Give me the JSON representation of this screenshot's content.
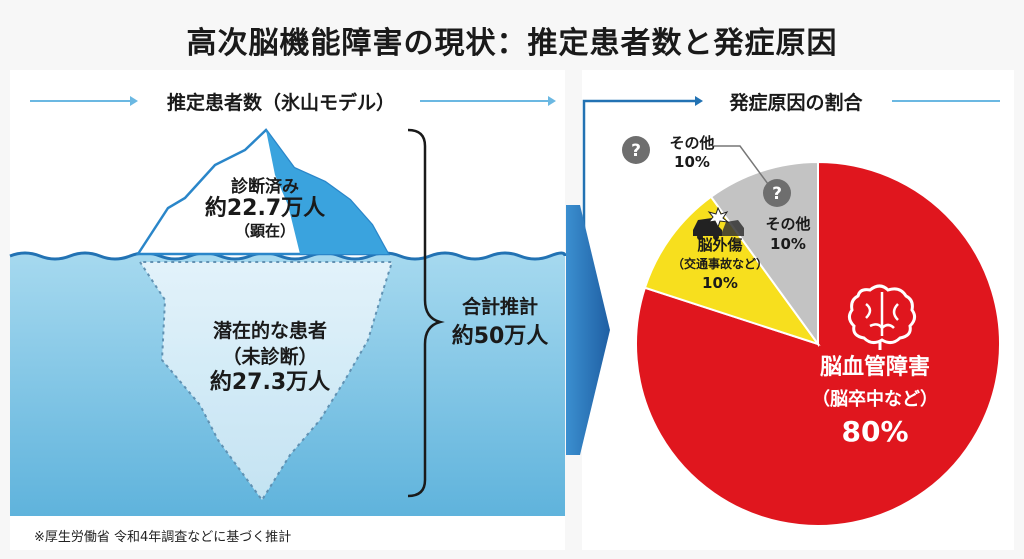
{
  "header": {
    "title": "高次脳機能障害の現状：推定患者数と発症原因"
  },
  "iceberg": {
    "section_title": "推定患者数（氷山モデル）",
    "diagnosed": {
      "label": "診断済み",
      "value": "約22.7万人",
      "note": "（顕在）"
    },
    "latent": {
      "label": "潜在的な患者",
      "note": "（未診断）",
      "value": "約27.3万人"
    },
    "total": {
      "label": "合計推計",
      "value": "約50万人"
    }
  },
  "pie": {
    "section_title": "発症原因の割合"
  },
  "chart_data": {
    "type": "pie",
    "title": "発症原因の割合",
    "slices": [
      {
        "label": "脳血管障害",
        "sublabel": "（脳卒中など）",
        "value": 80,
        "percent": "80%",
        "color": "#e0161e",
        "icon": "brain-icon"
      },
      {
        "label": "脳外傷",
        "sublabel": "（交通事故など）",
        "value": 10,
        "percent": "10%",
        "color": "#f7df1e",
        "icon": "car-crash-icon"
      },
      {
        "label": "その他",
        "sublabel": "",
        "value": 10,
        "percent": "10%",
        "color": "#c3c3c3",
        "icon": "question-icon"
      }
    ],
    "callout": {
      "label": "その他",
      "percent": "10%",
      "icon": "question-icon"
    }
  },
  "footnote": "※厚生労働省 令和4年調査などに基づく推計",
  "colors": {
    "water": "#8fcde8",
    "water_deep": "#63b6de",
    "accent": "#1a8fd0",
    "arrow": "#2474b5"
  }
}
